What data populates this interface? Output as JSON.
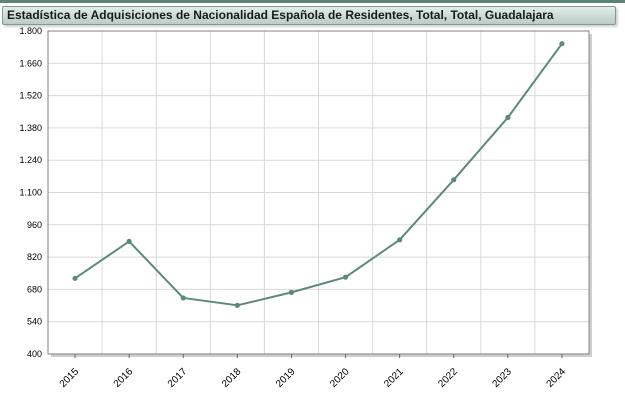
{
  "title": "Estadística de Adquisiciones de Nacionalidad Española de Residentes, Total, Total, Guadalajara",
  "colors": {
    "line": "#5b8a79",
    "grid": "#d9d9d9",
    "frame": "#808080"
  },
  "chart_data": {
    "type": "line",
    "title": "Estadística de Adquisiciones de Nacionalidad Española de Residentes, Total, Total, Guadalajara",
    "xlabel": "",
    "ylabel": "",
    "categories": [
      "2015",
      "2016",
      "2017",
      "2018",
      "2019",
      "2020",
      "2021",
      "2022",
      "2023",
      "2024"
    ],
    "series": [
      {
        "values": [
          728,
          888,
          643,
          611,
          667,
          733,
          895,
          1155,
          1425,
          1745
        ]
      }
    ],
    "ylim": [
      400,
      1800
    ],
    "yticks": [
      400,
      540,
      680,
      820,
      960,
      1100,
      1240,
      1380,
      1520,
      1660,
      1800
    ],
    "ytick_labels": [
      "400",
      "540",
      "680",
      "820",
      "960",
      "1.100",
      "1.240",
      "1.380",
      "1.520",
      "1.660",
      "1.800"
    ],
    "grid": true,
    "legend": "none"
  }
}
